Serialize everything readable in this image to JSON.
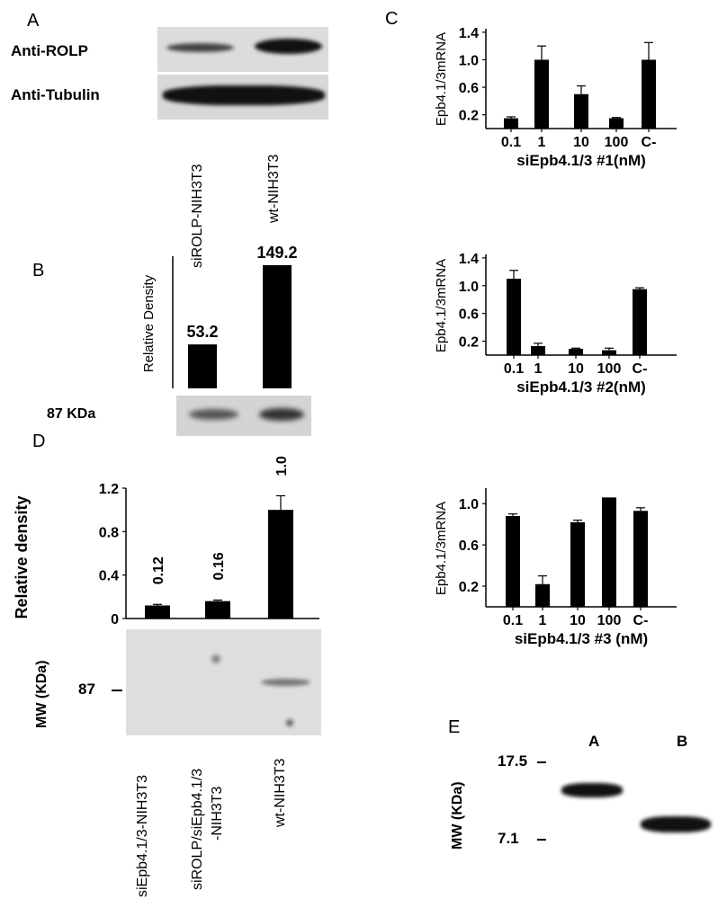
{
  "panels": {
    "A": {
      "letter": "A",
      "row_labels": [
        "Anti-ROLP",
        "Anti-Tubulin"
      ],
      "lane_labels": [
        "siROLP-NIH3T3",
        "wt-NIH3T3"
      ]
    },
    "B": {
      "letter": "B",
      "band_label": "87 KDa"
    },
    "C": {
      "letter": "C"
    },
    "D": {
      "letter": "D",
      "mw_axis_label": "MW (KDa)",
      "mw_marker": "87",
      "lane_labels": [
        "siEpb4.1/3-NIH3T3",
        "siROLP/siEpb4.1/3",
        "-NIH3T3",
        "wt-NIH3T3"
      ]
    },
    "E": {
      "letter": "E",
      "mw_axis_label": "MW (KDa)",
      "mw_markers": [
        "17.5",
        "7.1"
      ],
      "lane_labels": [
        "A",
        "B"
      ]
    }
  },
  "chart_data": [
    {
      "id": "B",
      "type": "bar",
      "categories": [
        "siROLP-NIH3T3",
        "wt-NIH3T3"
      ],
      "values": [
        53.2,
        149.2
      ],
      "data_labels": [
        "53.2",
        "149.2"
      ],
      "ylabel": "Relative Density",
      "ylim": [
        0,
        160
      ]
    },
    {
      "id": "C1",
      "type": "bar",
      "categories": [
        "0.1",
        "1",
        "10",
        "100",
        "C-"
      ],
      "values": [
        0.15,
        1.0,
        0.5,
        0.15,
        1.0
      ],
      "errors": [
        0.02,
        0.2,
        0.12,
        0.01,
        0.25
      ],
      "yticks": [
        "0.2",
        "0.6",
        "1.0",
        "1.4"
      ],
      "ylim": [
        0,
        1.45
      ],
      "ylabel": "Epb4.1/3mRNA",
      "xlabel": "siEpb4.1/3 #1(nM)"
    },
    {
      "id": "C2",
      "type": "bar",
      "categories": [
        "0.1",
        "1",
        "10",
        "100",
        "C-"
      ],
      "values": [
        1.1,
        0.13,
        0.09,
        0.07,
        0.95
      ],
      "errors": [
        0.12,
        0.04,
        0.01,
        0.03,
        0.02
      ],
      "yticks": [
        "0.2",
        "0.6",
        "1.0",
        "1.4"
      ],
      "ylim": [
        0,
        1.45
      ],
      "ylabel": "Epb4.1/3mRNA",
      "xlabel": "siEpb4.1/3 #2(nM)"
    },
    {
      "id": "C3",
      "type": "bar",
      "categories": [
        "0.1",
        "1",
        "10",
        "100",
        "C-"
      ],
      "values": [
        0.88,
        0.22,
        0.82,
        1.06,
        0.93
      ],
      "errors": [
        0.02,
        0.08,
        0.02,
        0.0,
        0.03
      ],
      "yticks": [
        "0.2",
        "0.6",
        "1.0"
      ],
      "ylim": [
        0,
        1.15
      ],
      "ylabel": "Epb4.1/3mRNA",
      "xlabel": "siEpb4.1/3 #3 (nM)"
    },
    {
      "id": "D",
      "type": "bar",
      "categories": [
        "siEpb4.1/3-NIH3T3",
        "siROLP/siEpb4.1/3-NIH3T3",
        "wt-NIH3T3"
      ],
      "values": [
        0.12,
        0.16,
        1.0
      ],
      "errors": [
        0.01,
        0.01,
        0.13
      ],
      "data_labels": [
        "0.12",
        "0.16",
        "1.0"
      ],
      "yticks": [
        "0",
        "0.4",
        "0.8",
        "1.2"
      ],
      "ylim": [
        0,
        1.2
      ],
      "ylabel": "Relative density"
    }
  ],
  "colors": {
    "bar": "#000000",
    "blot_bg": "#e6e6e6",
    "band": "#1a1a1a"
  }
}
